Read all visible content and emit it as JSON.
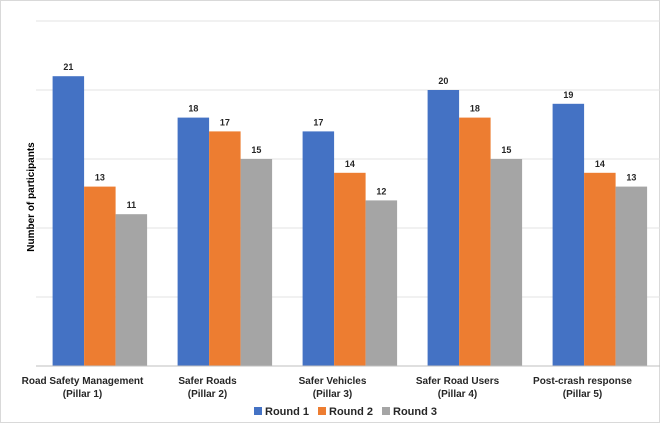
{
  "chart_data": {
    "type": "bar",
    "title": "",
    "xlabel": "",
    "ylabel": "Number of participants",
    "ylim": [
      0,
      25
    ],
    "grid": true,
    "legend_position": "bottom",
    "categories": [
      [
        "Road Safety Management",
        "(Pillar 1)"
      ],
      [
        "Safer Roads",
        "(Pillar 2)"
      ],
      [
        "Safer Vehicles",
        "(Pillar 3)"
      ],
      [
        "Safer Road Users",
        "(Pillar 4)"
      ],
      [
        "Post-crash response",
        "(Pillar 5)"
      ]
    ],
    "series": [
      {
        "name": "Round 1",
        "color": "#4472C4",
        "values": [
          21,
          18,
          17,
          20,
          19
        ]
      },
      {
        "name": "Round 2",
        "color": "#ED7D31",
        "values": [
          13,
          17,
          14,
          18,
          14
        ]
      },
      {
        "name": "Round 3",
        "color": "#A5A5A5",
        "values": [
          11,
          15,
          12,
          15,
          13
        ]
      }
    ]
  }
}
